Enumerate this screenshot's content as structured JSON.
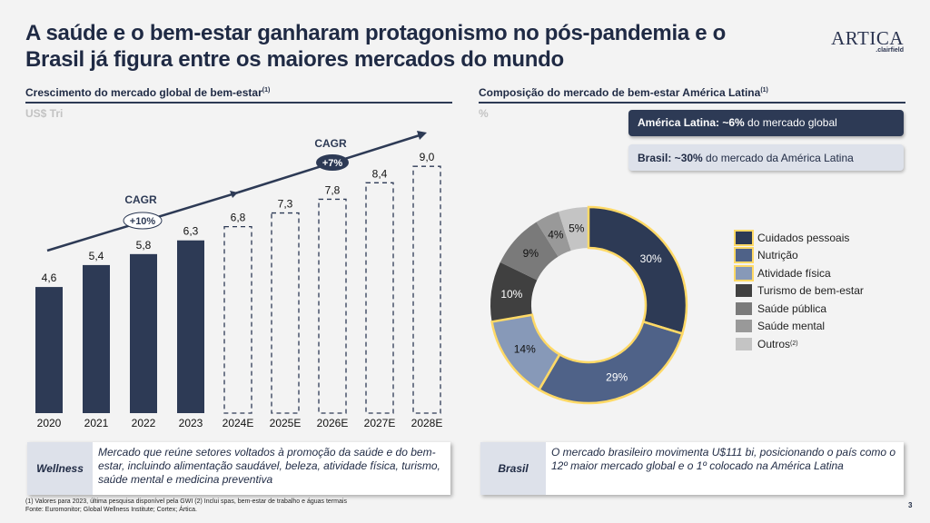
{
  "title": "A saúde e o bem-estar ganharam protagonismo no pós-pandemia e o Brasil já figura entre os maiores mercados do mundo",
  "logo": {
    "main": "ARTICA",
    "sub": ".clairfield"
  },
  "left": {
    "heading": "Crescimento do mercado global de bem-estar",
    "heading_sup": "(1)",
    "unit": "US$ Tri"
  },
  "right": {
    "heading": "Composição do mercado de bem-estar América Latina",
    "heading_sup": "(1)",
    "unit": "%",
    "box1": {
      "bold": "América Latina: ~6%",
      "rest": " do mercado global"
    },
    "box2": {
      "bold": "Brasil: ~30%",
      "rest": " do mercado da América Latina"
    }
  },
  "chart_data": [
    {
      "type": "bar",
      "categories": [
        "2020",
        "2021",
        "2022",
        "2023",
        "2024E",
        "2025E",
        "2026E",
        "2027E",
        "2028E"
      ],
      "values": [
        4.6,
        5.4,
        5.8,
        6.3,
        6.8,
        7.3,
        7.8,
        8.4,
        9.0
      ],
      "labels": [
        "4,6",
        "5,4",
        "5,8",
        "6,3",
        "6,8",
        "7,3",
        "7,8",
        "8,4",
        "9,0"
      ],
      "projected": [
        false,
        false,
        false,
        false,
        true,
        true,
        true,
        true,
        true
      ],
      "ylabel": "US$ Tri",
      "annotations": [
        {
          "text": "CAGR",
          "value": "+10%"
        },
        {
          "text": "CAGR",
          "value": "+7%"
        }
      ],
      "colors": {
        "bar": "#2d3a55"
      }
    },
    {
      "type": "pie",
      "donut": true,
      "categories": [
        "Cuidados pessoais",
        "Nutrição",
        "Atividade física",
        "Turismo de bem-estar",
        "Saúde pública",
        "Saúde mental",
        "Outros"
      ],
      "category_sups": [
        "",
        "",
        "",
        "",
        "",
        "",
        "(2)"
      ],
      "values": [
        30,
        29,
        14,
        10,
        9,
        4,
        5
      ],
      "labels": [
        "30%",
        "29%",
        "14%",
        "10%",
        "9%",
        "4%",
        "5%"
      ],
      "highlighted": [
        true,
        true,
        true,
        false,
        false,
        false,
        false
      ],
      "colors": [
        "#2d3a55",
        "#4f6288",
        "#8799b8",
        "#404040",
        "#7a7a7a",
        "#999999",
        "#c4c4c4"
      ],
      "highlight_color": "#ffd966",
      "legend": "right"
    }
  ],
  "notes": [
    {
      "label": "Wellness",
      "text": "Mercado que reúne setores voltados à promoção da saúde e do bem-estar, incluindo alimentação saudável, beleza, atividade física, turismo, saúde mental e medicina preventiva"
    },
    {
      "label": "Brasil",
      "text": "O mercado brasileiro movimenta U$111 bi, posicionando o país como o 12º maior mercado global e o 1º colocado na América Latina"
    }
  ],
  "footnote1": "(1) Valores para 2023, última pesquisa disponível pela GWI (2) Inclui spas, bem-estar de trabalho e águas termais",
  "footnote2": "Fonte: Euromonitor; Global Wellness Institute; Cortex; Ártica.",
  "page_number": "3"
}
